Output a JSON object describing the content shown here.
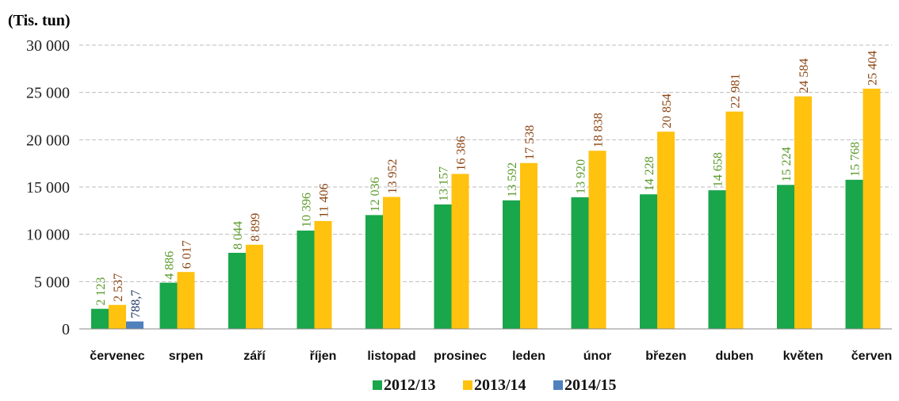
{
  "chart_data": {
    "type": "bar",
    "unit_label": "(Tis. tun)",
    "categories": [
      "červenec",
      "srpen",
      "září",
      "říjen",
      "listopad",
      "prosinec",
      "leden",
      "únor",
      "březen",
      "duben",
      "květen",
      "červen"
    ],
    "yticks": [
      "0",
      "5 000",
      "10 000",
      "15 000",
      "20 000",
      "25 000",
      "30 000"
    ],
    "ylim": [
      0,
      30000
    ],
    "grid": true,
    "legend_position": "bottom",
    "series": [
      {
        "name": "2012/13",
        "color": "#1aa64b",
        "label_color": "#5a9a2a",
        "values": [
          2123,
          4886,
          8044,
          10396,
          12036,
          13157,
          13592,
          13920,
          14228,
          14658,
          15224,
          15768
        ],
        "labels": [
          "2 123",
          "4 886",
          "8 044",
          "10 396",
          "12 036",
          "13 157",
          "13 592",
          "13 920",
          "14 228",
          "14 658",
          "15 224",
          "15 768"
        ]
      },
      {
        "name": "2013/14",
        "color": "#ffc20e",
        "label_color": "#8b4513",
        "values": [
          2537,
          6017,
          8899,
          11406,
          13952,
          16386,
          17538,
          18838,
          20854,
          22981,
          24584,
          25404
        ],
        "labels": [
          "2 537",
          "6 017",
          "8 899",
          "11 406",
          "13 952",
          "16 386",
          "17 538",
          "18 838",
          "20 854",
          "22 981",
          "24 584",
          "25 404"
        ]
      },
      {
        "name": "2014/15",
        "color": "#4f81bd",
        "label_color": "#1f3864",
        "values": [
          788.7,
          null,
          null,
          null,
          null,
          null,
          null,
          null,
          null,
          null,
          null,
          null
        ],
        "labels": [
          "788,7",
          "",
          "",
          "",
          "",
          "",
          "",
          "",
          "",
          "",
          "",
          ""
        ]
      }
    ]
  }
}
